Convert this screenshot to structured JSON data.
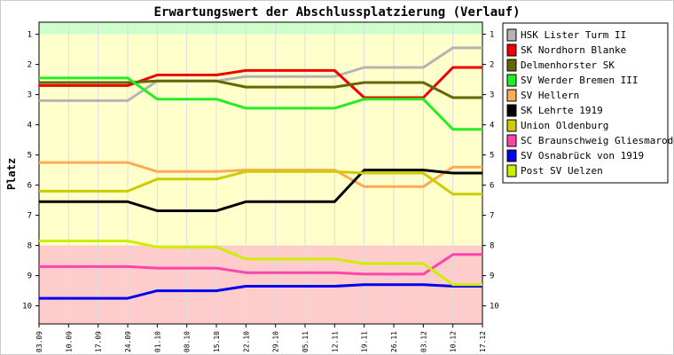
{
  "chart_data": {
    "type": "line",
    "title": "Erwartungswert der Abschlussplatzierung (Verlauf)",
    "ylabel": "Platz",
    "xlabel": "",
    "ylim": [
      0.6,
      10.6
    ],
    "y_inverted": true,
    "y_ticks": [
      "1",
      "2",
      "3",
      "4",
      "5",
      "6",
      "7",
      "8",
      "9",
      "10"
    ],
    "x": [
      "03.09",
      "10.09",
      "17.09",
      "24.09",
      "01.10",
      "08.10",
      "15.10",
      "22.10",
      "29.10",
      "05.11",
      "12.11",
      "19.11",
      "26.11",
      "03.12",
      "10.12",
      "17.12"
    ],
    "bands": [
      {
        "from": 0.6,
        "to": 1.0,
        "color": "#ccffcc"
      },
      {
        "from": 1.0,
        "to": 8.0,
        "color": "#ffffcc"
      },
      {
        "from": 8.0,
        "to": 10.6,
        "color": "#ffcccc"
      }
    ],
    "legend_position": "right",
    "series": [
      {
        "name": "HSK Lister Turm II",
        "color": "#b4b4b4",
        "values": [
          3.2,
          3.2,
          3.2,
          3.2,
          2.55,
          2.55,
          2.55,
          2.4,
          2.4,
          2.4,
          2.4,
          2.1,
          2.1,
          2.1,
          1.45,
          1.45
        ]
      },
      {
        "name": "SK Nordhorn Blanke",
        "color": "#ee0000",
        "values": [
          2.7,
          2.7,
          2.7,
          2.7,
          2.35,
          2.35,
          2.35,
          2.2,
          2.2,
          2.2,
          2.2,
          3.1,
          3.1,
          3.1,
          2.1,
          2.1
        ]
      },
      {
        "name": "Delmenhorster SK",
        "color": "#666600",
        "values": [
          2.6,
          2.6,
          2.6,
          2.6,
          2.55,
          2.55,
          2.55,
          2.75,
          2.75,
          2.75,
          2.75,
          2.6,
          2.6,
          2.6,
          3.1,
          3.1
        ]
      },
      {
        "name": "SV Werder Bremen III",
        "color": "#22ee22",
        "values": [
          2.45,
          2.45,
          2.45,
          2.45,
          3.15,
          3.15,
          3.15,
          3.45,
          3.45,
          3.45,
          3.45,
          3.15,
          3.15,
          3.15,
          4.15,
          4.15
        ]
      },
      {
        "name": "SV Hellern",
        "color": "#ffaa55",
        "values": [
          5.25,
          5.25,
          5.25,
          5.25,
          5.55,
          5.55,
          5.55,
          5.5,
          5.5,
          5.5,
          5.5,
          6.05,
          6.05,
          6.05,
          5.4,
          5.4
        ]
      },
      {
        "name": "SK Lehrte 1919",
        "color": "#000000",
        "values": [
          6.55,
          6.55,
          6.55,
          6.55,
          6.85,
          6.85,
          6.85,
          6.55,
          6.55,
          6.55,
          6.55,
          5.5,
          5.5,
          5.5,
          5.6,
          5.6
        ]
      },
      {
        "name": "Union Oldenburg",
        "color": "#cccc00",
        "values": [
          6.2,
          6.2,
          6.2,
          6.2,
          5.8,
          5.8,
          5.8,
          5.55,
          5.55,
          5.55,
          5.55,
          5.6,
          5.6,
          5.6,
          6.3,
          6.3
        ]
      },
      {
        "name": "SC Braunschweig Gliesmarode",
        "color": "#ff44aa",
        "values": [
          8.7,
          8.7,
          8.7,
          8.7,
          8.75,
          8.75,
          8.75,
          8.9,
          8.9,
          8.9,
          8.9,
          8.95,
          8.95,
          8.95,
          8.3,
          8.3
        ]
      },
      {
        "name": "SV Osnabrück von 1919",
        "color": "#0000ee",
        "values": [
          9.75,
          9.75,
          9.75,
          9.75,
          9.5,
          9.5,
          9.5,
          9.35,
          9.35,
          9.35,
          9.35,
          9.3,
          9.3,
          9.3,
          9.35,
          9.35
        ]
      },
      {
        "name": "Post SV Uelzen",
        "color": "#ccee00",
        "values": [
          7.85,
          7.85,
          7.85,
          7.85,
          8.05,
          8.05,
          8.05,
          8.45,
          8.45,
          8.45,
          8.45,
          8.6,
          8.6,
          8.6,
          9.3,
          9.3
        ]
      }
    ]
  }
}
